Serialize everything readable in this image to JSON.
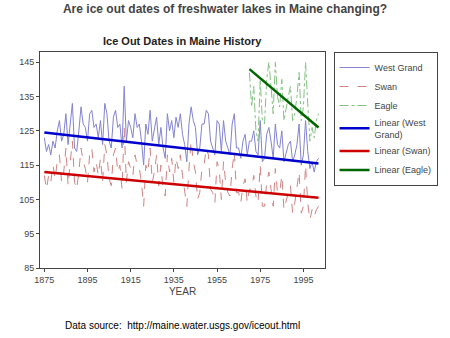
{
  "chart_data": {
    "type": "line",
    "title": "Ice Out Dates in Maine History",
    "subtitle": "Are ice out dates of freshwater lakes in Maine changing?",
    "xlabel": "YEAR",
    "annotations": [
      "Data source:  http://maine.water.usgs.gov/iceout.html"
    ],
    "xlim": [
      1873,
      2005
    ],
    "ylim": [
      85,
      148
    ],
    "xticks": [
      1875,
      1895,
      1915,
      1935,
      1955,
      1975,
      1995
    ],
    "yticks": [
      85,
      95,
      105,
      115,
      125,
      135,
      145
    ],
    "grid": false,
    "legend": "right",
    "series": [
      {
        "name": "West Grand",
        "color": "#7777cc",
        "line_style": "solid",
        "x": [
          1875,
          1876,
          1877,
          1878,
          1879,
          1880,
          1881,
          1882,
          1883,
          1884,
          1885,
          1886,
          1887,
          1888,
          1889,
          1890,
          1891,
          1892,
          1893,
          1894,
          1895,
          1896,
          1897,
          1898,
          1899,
          1900,
          1901,
          1902,
          1903,
          1904,
          1905,
          1906,
          1907,
          1908,
          1909,
          1910,
          1911,
          1912,
          1913,
          1914,
          1915,
          1916,
          1917,
          1918,
          1919,
          1920,
          1921,
          1922,
          1923,
          1924,
          1925,
          1926,
          1927,
          1928,
          1929,
          1930,
          1931,
          1932,
          1933,
          1934,
          1935,
          1936,
          1937,
          1938,
          1939,
          1940,
          1941,
          1942,
          1943,
          1944,
          1945,
          1946,
          1947,
          1948,
          1949,
          1950,
          1951,
          1952,
          1953,
          1954,
          1955,
          1956,
          1957,
          1958,
          1959,
          1960,
          1961,
          1962,
          1963,
          1964,
          1965,
          1966,
          1967,
          1968,
          1969,
          1970,
          1971,
          1972,
          1973,
          1974,
          1975,
          1976,
          1977,
          1978,
          1979,
          1980,
          1981,
          1982,
          1983,
          1984,
          1985,
          1986,
          1987,
          1988,
          1989,
          1990,
          1991,
          1992,
          1993,
          1994,
          1995,
          1996,
          1997,
          1998,
          1999,
          2000,
          2001,
          2002
        ],
        "values": [
          123,
          119,
          121,
          118,
          122,
          120,
          125,
          128,
          122,
          124,
          130,
          121,
          127,
          133,
          120,
          119,
          125,
          132,
          127,
          126,
          122,
          130,
          131,
          126,
          127,
          123,
          128,
          121,
          133,
          130,
          122,
          120,
          129,
          131,
          126,
          127,
          120,
          138,
          122,
          128,
          126,
          123,
          130,
          126,
          127,
          122,
          115,
          127,
          124,
          131,
          122,
          126,
          129,
          121,
          126,
          120,
          117,
          130,
          125,
          128,
          123,
          129,
          126,
          130,
          124,
          121,
          116,
          127,
          132,
          128,
          126,
          118,
          120,
          127,
          127,
          131,
          130,
          122,
          120,
          118,
          128,
          127,
          119,
          128,
          122,
          120,
          118,
          127,
          130,
          120,
          120,
          117,
          122,
          124,
          118,
          122,
          122,
          125,
          119,
          118,
          128,
          116,
          117,
          124,
          126,
          122,
          117,
          127,
          121,
          120,
          125,
          116,
          119,
          121,
          122,
          116,
          118,
          121,
          127,
          115,
          118,
          128,
          119,
          114,
          116,
          113,
          116,
          117
        ]
      },
      {
        "name": "Swan",
        "color": "#cc7777",
        "line_style": "dashed",
        "x": [
          1875,
          1876,
          1877,
          1878,
          1879,
          1880,
          1881,
          1882,
          1883,
          1884,
          1885,
          1886,
          1887,
          1888,
          1889,
          1890,
          1891,
          1892,
          1893,
          1894,
          1895,
          1896,
          1897,
          1898,
          1899,
          1900,
          1901,
          1902,
          1903,
          1904,
          1905,
          1906,
          1907,
          1908,
          1909,
          1910,
          1911,
          1912,
          1913,
          1914,
          1915,
          1916,
          1917,
          1918,
          1919,
          1920,
          1921,
          1922,
          1923,
          1924,
          1925,
          1926,
          1927,
          1928,
          1929,
          1930,
          1931,
          1932,
          1933,
          1934,
          1935,
          1936,
          1937,
          1938,
          1939,
          1940,
          1941,
          1942,
          1943,
          1944,
          1945,
          1946,
          1947,
          1948,
          1949,
          1950,
          1951,
          1952,
          1953,
          1954,
          1955,
          1956,
          1957,
          1958,
          1959,
          1960,
          1961,
          1962,
          1963,
          1964,
          1965,
          1966,
          1967,
          1968,
          1969,
          1970,
          1971,
          1972,
          1973,
          1974,
          1975,
          1976,
          1977,
          1978,
          1979,
          1980,
          1981,
          1982,
          1983,
          1984,
          1985,
          1986,
          1987,
          1988,
          1989,
          1990,
          1991,
          1992,
          1993,
          1994,
          1995,
          1996,
          1997,
          1998,
          1999,
          2000,
          2001,
          2002
        ],
        "values": [
          112,
          108,
          112,
          110,
          115,
          111,
          116,
          118,
          110,
          113,
          120,
          109,
          116,
          122,
          110,
          108,
          113,
          120,
          116,
          114,
          110,
          118,
          120,
          113,
          116,
          112,
          117,
          110,
          121,
          118,
          111,
          109,
          118,
          120,
          113,
          115,
          108,
          126,
          110,
          116,
          114,
          112,
          118,
          115,
          114,
          110,
          103,
          115,
          113,
          120,
          110,
          113,
          118,
          109,
          115,
          108,
          106,
          118,
          113,
          117,
          110,
          117,
          114,
          118,
          112,
          108,
          103,
          114,
          122,
          116,
          113,
          105,
          107,
          114,
          115,
          120,
          118,
          108,
          107,
          104,
          116,
          114,
          105,
          116,
          110,
          107,
          106,
          114,
          119,
          107,
          107,
          104,
          109,
          111,
          104,
          108,
          108,
          112,
          106,
          104,
          115,
          103,
          103,
          110,
          113,
          108,
          103,
          114,
          107,
          107,
          112,
          102,
          105,
          107,
          109,
          101,
          104,
          108,
          113,
          101,
          103,
          115,
          104,
          99,
          102,
          100,
          102,
          103
        ]
      },
      {
        "name": "Eagle",
        "color": "#77bb77",
        "line_style": "dashdot",
        "x": [
          1970,
          1971,
          1972,
          1973,
          1974,
          1975,
          1976,
          1977,
          1978,
          1979,
          1980,
          1981,
          1982,
          1983,
          1984,
          1985,
          1986,
          1987,
          1988,
          1989,
          1990,
          1991,
          1992,
          1993,
          1994,
          1995,
          1996,
          1997,
          1998,
          1999,
          2000,
          2001,
          2002
        ],
        "values": [
          142,
          132,
          138,
          125,
          122,
          140,
          128,
          127,
          140,
          145,
          138,
          130,
          145,
          135,
          132,
          140,
          128,
          132,
          135,
          138,
          128,
          130,
          135,
          142,
          128,
          132,
          145,
          133,
          122,
          126,
          123,
          128,
          130
        ]
      },
      {
        "name": "Linear (West\nGrand)",
        "color": "#0000cc",
        "line_style": "solid",
        "x": [
          1875,
          2002
        ],
        "values": [
          124.5,
          115.5
        ]
      },
      {
        "name": "Linear (Swan)",
        "color": "#cc0000",
        "line_style": "solid",
        "x": [
          1875,
          2002
        ],
        "values": [
          113.0,
          105.5
        ]
      },
      {
        "name": "Linear (Eagle)",
        "color": "#006600",
        "line_style": "solid",
        "x": [
          1970,
          2002
        ],
        "values": [
          143,
          126
        ]
      }
    ]
  }
}
